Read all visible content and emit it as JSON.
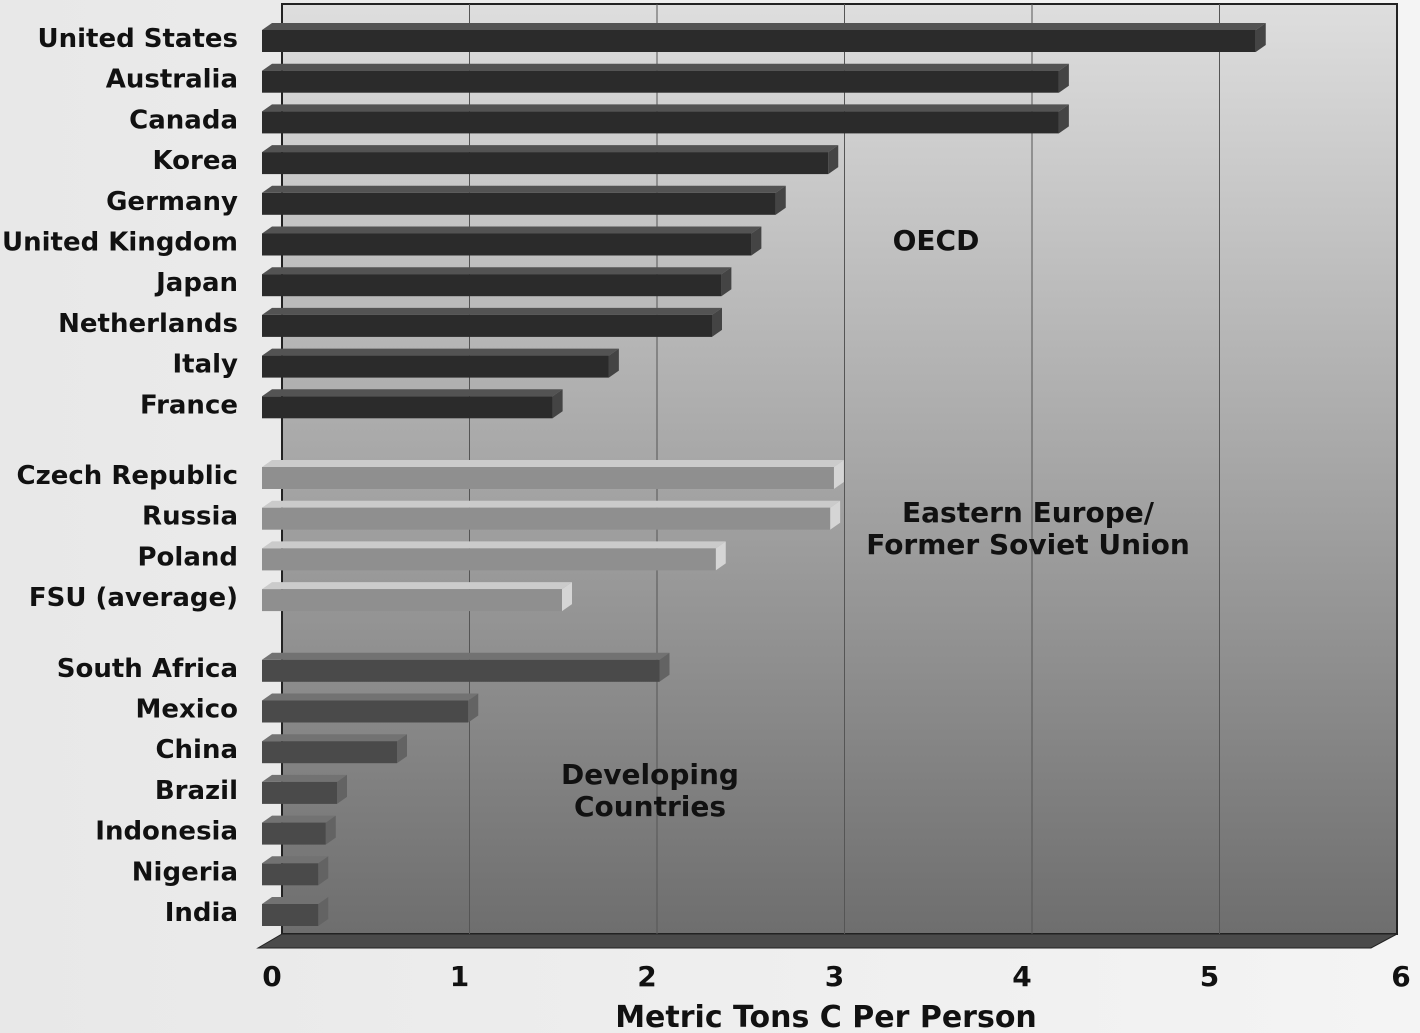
{
  "chart_data": {
    "type": "bar",
    "orientation": "horizontal",
    "xlabel": "Metric Tons C Per Person",
    "xlim": [
      0,
      6
    ],
    "xticks": [
      "0",
      "1",
      "2",
      "3",
      "4",
      "5",
      "6"
    ],
    "grid": true,
    "groups": [
      {
        "name": "OECD",
        "color": "#2b2b2b",
        "categories": [
          "United States",
          "Australia",
          "Canada",
          "Korea",
          "Germany",
          "United Kingdom",
          "Japan",
          "Netherlands",
          "Italy",
          "France"
        ],
        "values": [
          5.3,
          4.25,
          4.25,
          3.02,
          2.74,
          2.61,
          2.45,
          2.4,
          1.85,
          1.55
        ]
      },
      {
        "name": "Eastern Europe/\nFormer Soviet Union",
        "color": "#8f8f8f",
        "categories": [
          "Czech Republic",
          "Russia",
          "Poland",
          "FSU (average)"
        ],
        "values": [
          3.05,
          3.03,
          2.42,
          1.6
        ]
      },
      {
        "name": "Developing\nCountries",
        "color": "#4a4a4a",
        "categories": [
          "South Africa",
          "Mexico",
          "China",
          "Brazil",
          "Indonesia",
          "Nigeria",
          "India"
        ],
        "values": [
          2.12,
          1.1,
          0.72,
          0.4,
          0.34,
          0.3,
          0.3
        ]
      }
    ]
  }
}
